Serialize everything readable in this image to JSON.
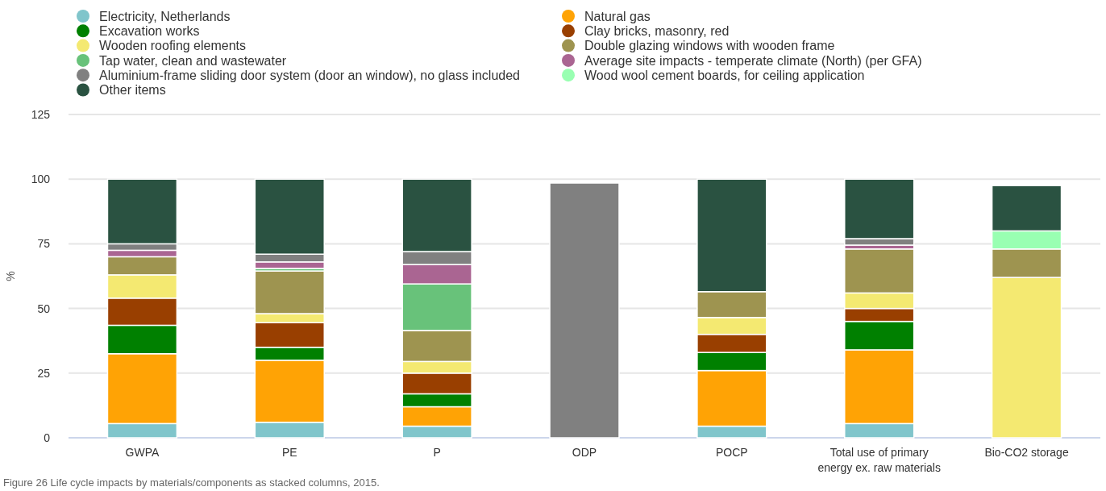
{
  "chart_data": {
    "type": "bar",
    "stacked": true,
    "ylabel": "%",
    "categories": [
      "GWPA",
      "PE",
      "P",
      "ODP",
      "POCP",
      "Total use of primary energy ex. raw materials",
      "Bio-CO2 storage"
    ],
    "ylim": [
      0,
      125
    ],
    "yticks": [
      0,
      25,
      50,
      75,
      100,
      125
    ],
    "grid": "y",
    "legend": "top left",
    "annotations": [
      "Figure 26 Life cycle impacts by materials/components as stacked columns, 2015."
    ],
    "series": [
      {
        "name": "Electricity, Netherlands",
        "color": "#80c5cb",
        "values": [
          5.5,
          6,
          4.5,
          0,
          4.5,
          5.5,
          0
        ]
      },
      {
        "name": "Natural gas",
        "color": "#ffa305",
        "values": [
          27,
          24,
          7.5,
          0,
          21.5,
          28.5,
          0
        ]
      },
      {
        "name": "Excavation works",
        "color": "#008000",
        "values": [
          11,
          5,
          5,
          0,
          7,
          11,
          0
        ]
      },
      {
        "name": "Clay bricks, masonry, red",
        "color": "#993f00",
        "values": [
          10.5,
          9.5,
          8,
          0,
          7,
          5,
          0
        ]
      },
      {
        "name": "Wooden roofing elements",
        "color": "#f4e971",
        "values": [
          9,
          3.5,
          4.5,
          0,
          6.5,
          6,
          62
        ]
      },
      {
        "name": "Double glazing windows with wooden frame",
        "color": "#9e9450",
        "values": [
          7,
          16.5,
          12,
          0,
          10,
          17,
          11
        ]
      },
      {
        "name": "Tap water, clean and wastewater",
        "color": "#68c27a",
        "values": [
          0,
          1,
          18,
          0,
          0,
          0,
          0
        ]
      },
      {
        "name": "Average site impacts - temperate climate (North) (per GFA)",
        "color": "#aa6592",
        "values": [
          2.5,
          2.5,
          7.5,
          0,
          0,
          1.5,
          0
        ]
      },
      {
        "name": "Aluminium-frame sliding door system (door an window), no glass included",
        "color": "#808080",
        "values": [
          2.5,
          3,
          5,
          98.5,
          0,
          2.5,
          0
        ]
      },
      {
        "name": "Wood wool cement boards, for ceiling application",
        "color": "#99ffb2",
        "values": [
          0,
          0,
          0,
          0,
          0,
          0,
          7
        ]
      },
      {
        "name": "Other items",
        "color": "#2a5241",
        "values": [
          25,
          29,
          28,
          0,
          43.5,
          23,
          17.5
        ]
      }
    ]
  }
}
